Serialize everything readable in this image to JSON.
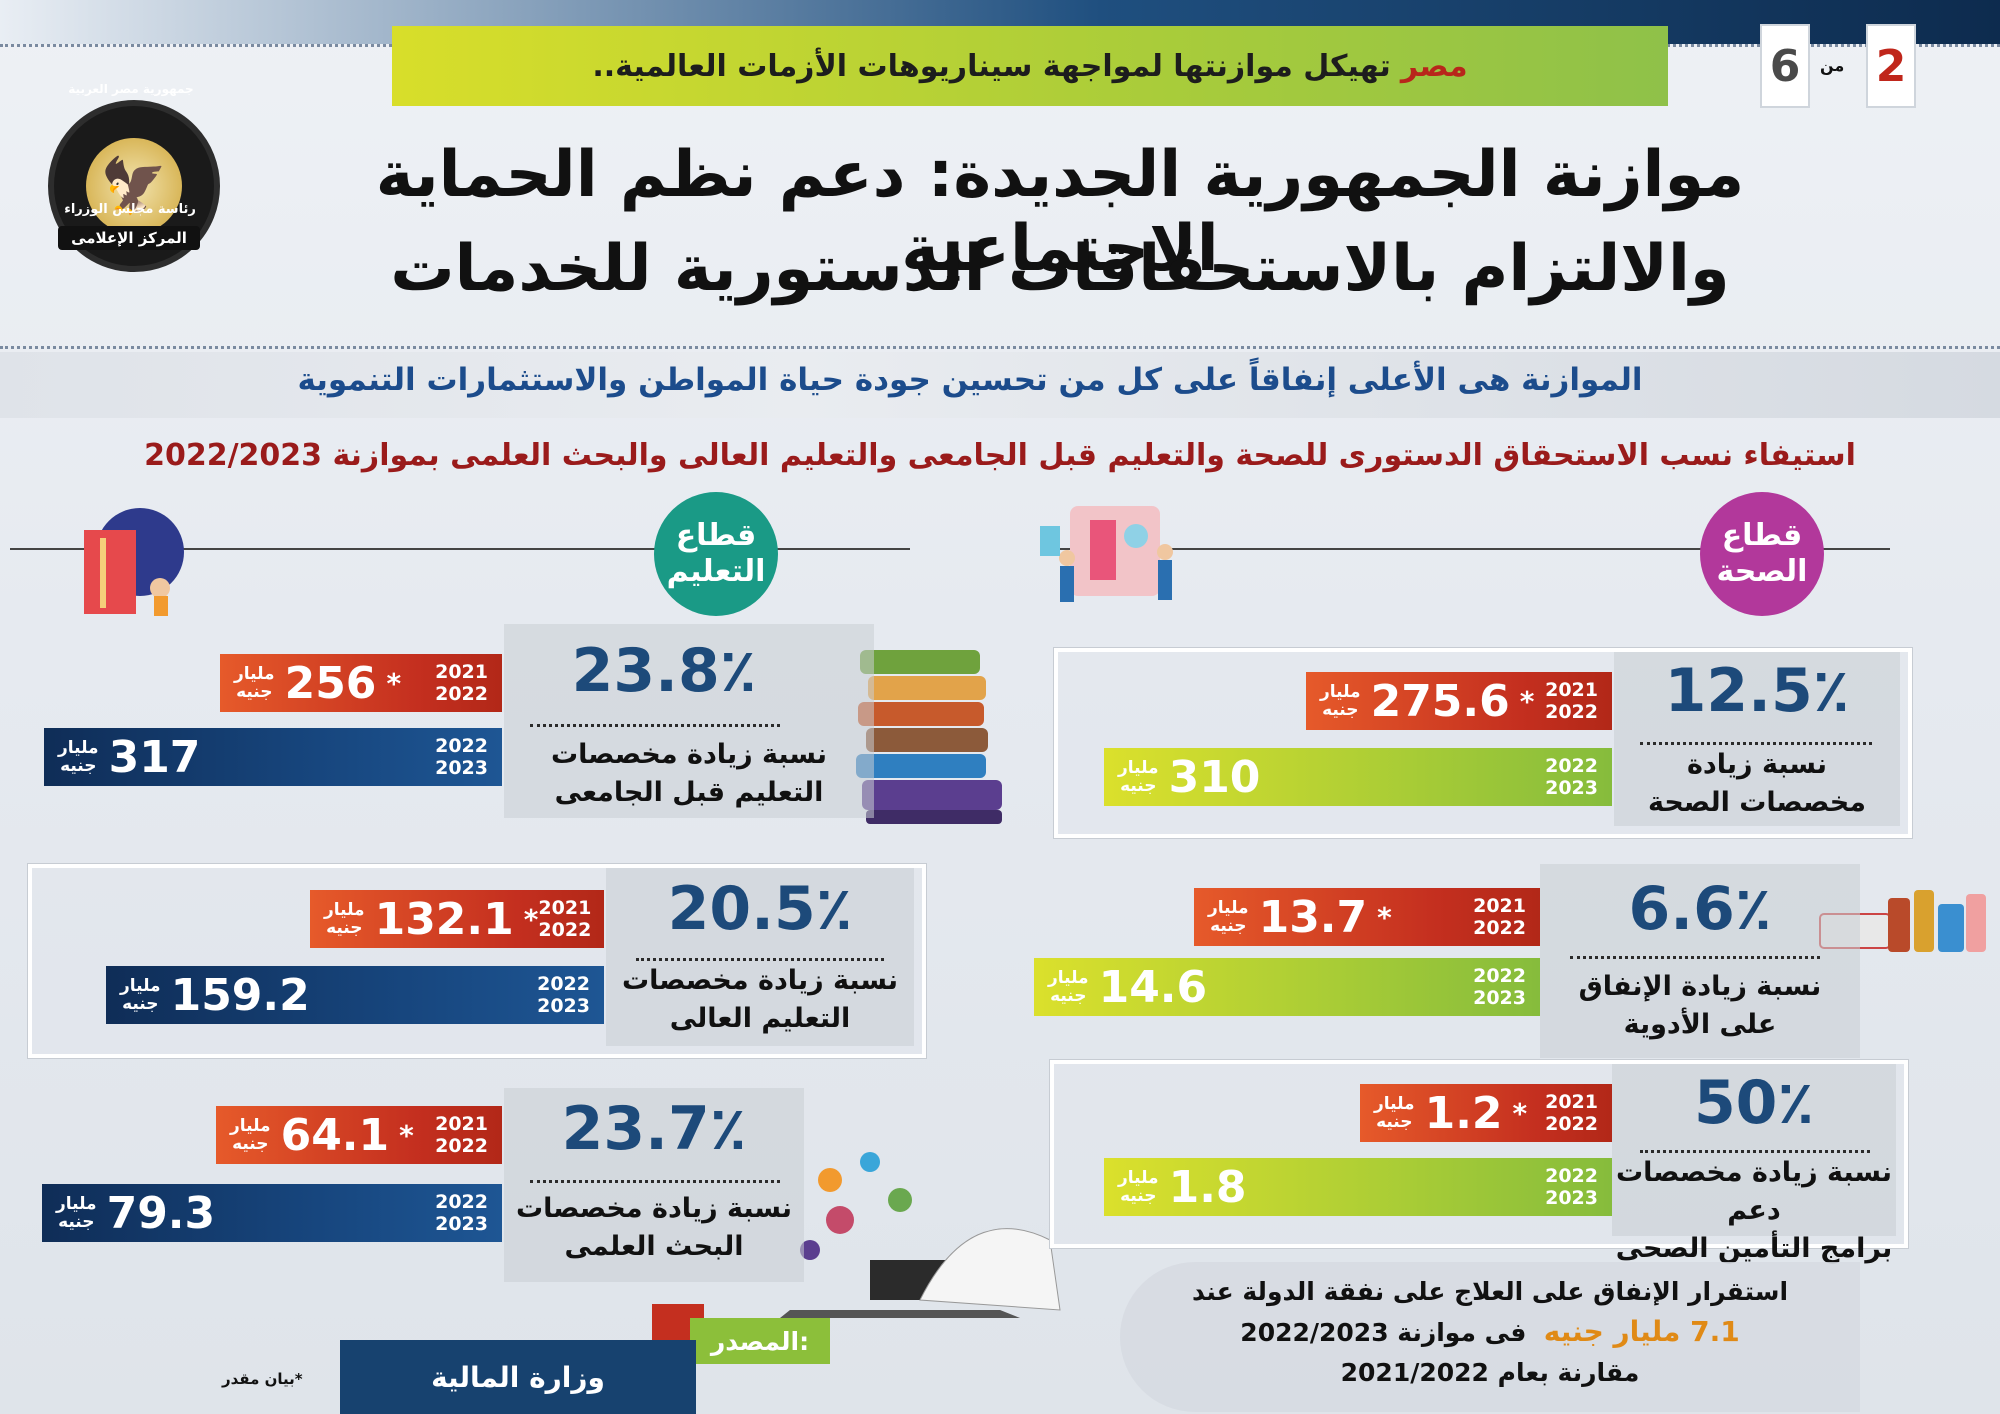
{
  "header": {
    "headline_highlight": "مصر",
    "headline_rest": "تهيكل موازنتها لمواجهة سيناريوهات الأزمات العالمية..",
    "page_current": "2",
    "page_of": "من",
    "page_total": "6"
  },
  "emblem": {
    "ring_text": "جمهورية مصر العربية",
    "org_text": "رئاسة مجلس الوزراء",
    "center_label": "المركز الإعلامى"
  },
  "title": {
    "line1": "موازنة الجمهورية الجديدة: دعم نظم الحماية الاجتماعية",
    "line2": "والالتزام بالاستحقاقات الدستورية للخدمات"
  },
  "subtitle": "الموازنة هى الأعلى إنفاقاً على كل من تحسين جودة حياة المواطن والاستثمارات التنموية",
  "section_heading": "استيفاء نسب الاستحقاق الدستورى للصحة والتعليم قبل الجامعى والتعليم العالى والبحث العلمى بموازنة 2022/2023",
  "sectors": {
    "health": {
      "line1": "قطاع",
      "line2": "الصحة",
      "color": "#b2389b"
    },
    "education": {
      "line1": "قطاع",
      "line2": "التعليم",
      "color": "#1a9a86"
    }
  },
  "unit_top": "مليار",
  "unit_bottom": "جنيه",
  "estimate_mark": "*",
  "chart_data": {
    "type": "bar",
    "colors": {
      "health_prev": "#c42f1f",
      "health_curr": "#a8cc36",
      "edu_prev": "#c42f1f",
      "edu_curr": "#17467e"
    },
    "items": [
      {
        "key": "health",
        "pct": "12.5٪",
        "desc1": "نسبة زيادة",
        "desc2": "مخصصات الصحة",
        "prev_year1": "2021",
        "prev_year2": "2022",
        "prev_value": 275.6,
        "prev_label": "275.6",
        "curr_year1": "2022",
        "curr_year2": "2023",
        "curr_value": 310,
        "curr_label": "310"
      },
      {
        "key": "medicine",
        "pct": "6.6٪",
        "desc1": "نسبة زيادة الإنفاق",
        "desc2": "على الأدوية",
        "prev_year1": "2021",
        "prev_year2": "2022",
        "prev_value": 13.7,
        "prev_label": "13.7",
        "curr_year1": "2022",
        "curr_year2": "2023",
        "curr_value": 14.6,
        "curr_label": "14.6"
      },
      {
        "key": "insurance",
        "pct": "50٪",
        "desc1": "نسبة زيادة مخصصات دعم",
        "desc2": "برامج التأمين الصحى",
        "prev_year1": "2021",
        "prev_year2": "2022",
        "prev_value": 1.2,
        "prev_label": "1.2",
        "curr_year1": "2022",
        "curr_year2": "2023",
        "curr_value": 1.8,
        "curr_label": "1.8"
      },
      {
        "key": "pre_university",
        "pct": "23.8٪",
        "desc1": "نسبة زيادة مخصصات",
        "desc2": "التعليم قبل الجامعى",
        "prev_year1": "2021",
        "prev_year2": "2022",
        "prev_value": 256,
        "prev_label": "256",
        "curr_year1": "2022",
        "curr_year2": "2023",
        "curr_value": 317,
        "curr_label": "317"
      },
      {
        "key": "higher_education",
        "pct": "20.5٪",
        "desc1": "نسبة زيادة مخصصات",
        "desc2": "التعليم العالى",
        "prev_year1": "2021",
        "prev_year2": "2022",
        "prev_value": 132.1,
        "prev_label": "132.1",
        "curr_year1": "2022",
        "curr_year2": "2023",
        "curr_value": 159.2,
        "curr_label": "159.2"
      },
      {
        "key": "research",
        "pct": "23.7٪",
        "desc1": "نسبة زيادة مخصصات",
        "desc2": "البحث العلمى",
        "prev_year1": "2021",
        "prev_year2": "2022",
        "prev_value": 64.1,
        "prev_label": "64.1",
        "curr_year1": "2022",
        "curr_year2": "2023",
        "curr_value": 79.3,
        "curr_label": "79.3"
      }
    ]
  },
  "note": {
    "line1": "استقرار الإنفاق على العلاج على نفقة الدولة عند",
    "amount": "7.1 مليار جنيه",
    "line2_rest": "فى موازنة 2022/2023",
    "line3": "مقارنة بعام 2021/2022"
  },
  "source": {
    "label": "المصدر:",
    "value": "وزارة المالية"
  },
  "footnote": "*بيان مقدر"
}
